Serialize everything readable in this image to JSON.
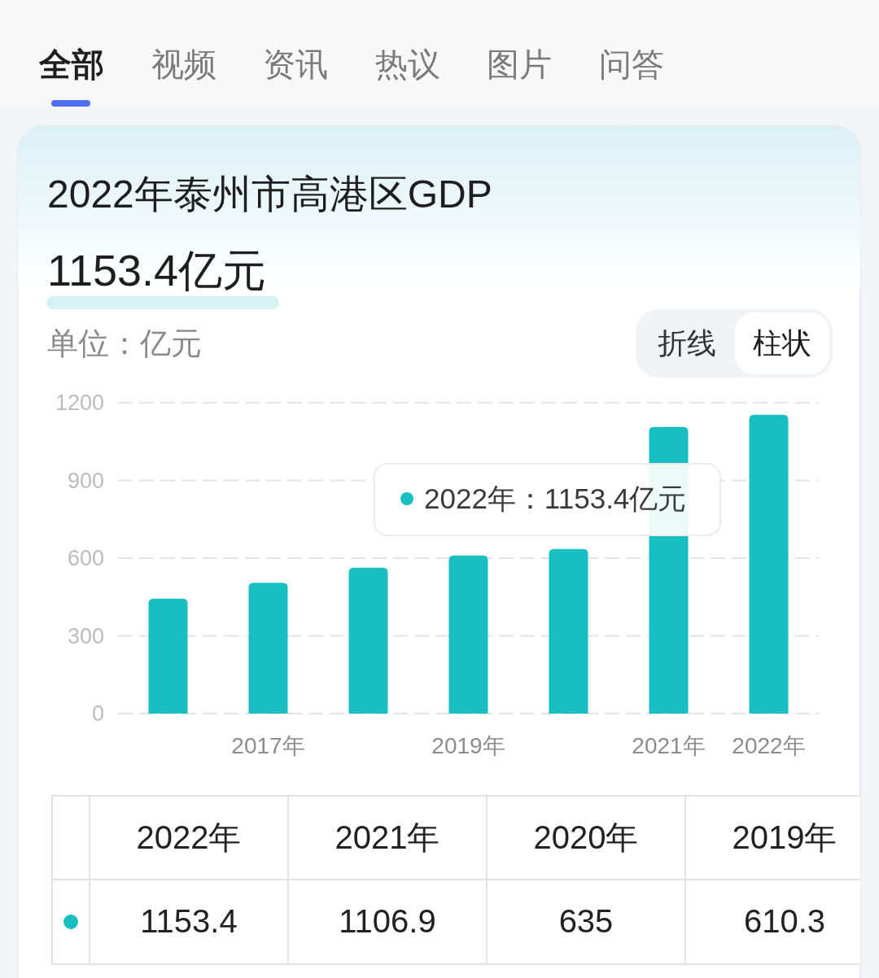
{
  "chart_data": {
    "type": "bar",
    "title": "2022年泰州市高港区GDP",
    "subtitle": "1153.4亿元",
    "ylabel": "单位：亿元",
    "categories": [
      null,
      "2017年",
      null,
      "2019年",
      null,
      "2021年",
      "2022年"
    ],
    "values": [
      444,
      505,
      563,
      610.3,
      635,
      1106.9,
      1153.4
    ],
    "color": "#18bec0",
    "ylim": [
      0,
      1200
    ],
    "yticks": [
      0,
      300,
      600,
      900,
      1200
    ],
    "grid": "y",
    "annotations": [
      "全部",
      "视频",
      "资讯",
      "热议",
      "图片",
      "问答",
      "折线",
      "柱状",
      "2022年：1153.4亿元",
      "2022年",
      "2021年",
      "2020年",
      "2019年",
      "1153.4",
      "1106.9",
      "635",
      "610.3"
    ]
  }
}
